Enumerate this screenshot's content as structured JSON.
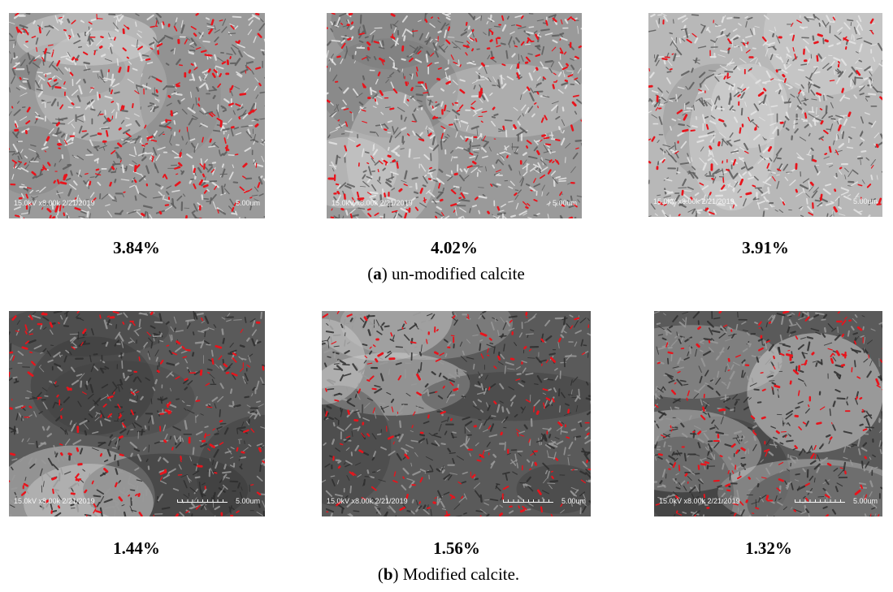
{
  "panels": {
    "a": {
      "letter": "a",
      "caption_rest": ") un-modified calcite",
      "images": [
        {
          "meta": "15.0kV x8.00k 2/21/2019",
          "scale": "5.00um",
          "porosity": "3.84%"
        },
        {
          "meta": "15.0kV x8.00k 2/21/2019",
          "scale": "5.00um",
          "porosity": "4.02%"
        },
        {
          "meta": "15.0kV x8.00k 2/21/2019",
          "scale": "5.00um",
          "porosity": "3.91%"
        }
      ]
    },
    "b": {
      "letter": "b",
      "caption_rest": ") Modified calcite.",
      "images": [
        {
          "meta": "15.0kV x8.00k 2/21/2019",
          "scale": "5.00um",
          "porosity": "1.44%"
        },
        {
          "meta": "15.0kV x8.00k 2/21/2019",
          "scale": "5.00um",
          "porosity": "1.56%"
        },
        {
          "meta": "15.0kV x8.00k 2/21/2019",
          "scale": "5.00um",
          "porosity": "1.32%"
        }
      ]
    }
  },
  "colors": {
    "pore_highlight": "#e8141c",
    "unmodified_base": "#9a9a9a",
    "modified_base": "#5a5a5a"
  }
}
